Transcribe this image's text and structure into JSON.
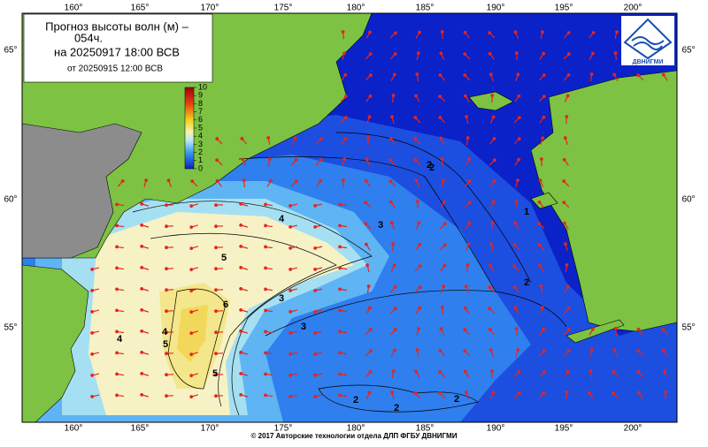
{
  "header": {
    "title": "Прогноз высоты волн (м) –",
    "lead": "054ч.",
    "valid": "на 20250917 18:00 ВСВ",
    "issued": "от 20250915 12:00 ВСВ"
  },
  "lon_labels": [
    "160°",
    "165°",
    "170°",
    "175°",
    "180°",
    "185°",
    "190°",
    "195°",
    "200°"
  ],
  "lat_labels": [
    "65°",
    "60°",
    "55°"
  ],
  "colorbar": {
    "ticks": [
      0,
      1,
      2,
      3,
      4,
      5,
      6,
      7,
      8,
      9,
      10
    ]
  },
  "contour_labels": [
    "2",
    "3",
    "4",
    "5",
    "6",
    "5",
    "4",
    "3",
    "3",
    "2",
    "2",
    "1",
    "4",
    "5",
    "2",
    "2",
    "2"
  ],
  "logo": "ДВНИГМИ",
  "footer": "© 2017 Авторские технологии отдела ДЛП ФГБУ ДВНИГМИ"
}
